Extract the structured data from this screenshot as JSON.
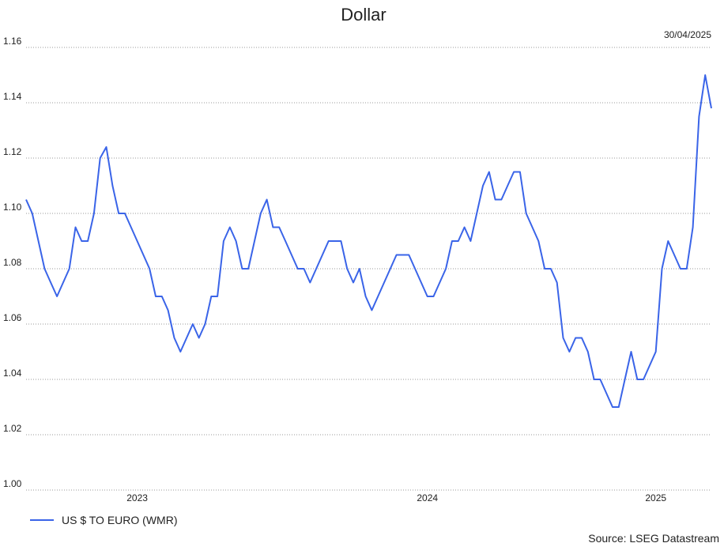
{
  "chart_data": {
    "type": "line",
    "title": "Dollar",
    "date_label": "30/04/2025",
    "source": "Source: LSEG Datastream",
    "categories": [
      null,
      null,
      null,
      null,
      null,
      null,
      null,
      null,
      null,
      null,
      null,
      null,
      null,
      null,
      null,
      null,
      null,
      null,
      "2023",
      null,
      null,
      null,
      null,
      null,
      null,
      null,
      null,
      null,
      null,
      null,
      null,
      null,
      null,
      null,
      null,
      null,
      null,
      null,
      null,
      null,
      null,
      null,
      null,
      null,
      null,
      null,
      null,
      null,
      null,
      null,
      null,
      null,
      null,
      null,
      null,
      null,
      null,
      null,
      null,
      null,
      null,
      null,
      null,
      null,
      null,
      "2024",
      null,
      null,
      null,
      null,
      null,
      null,
      null,
      null,
      null,
      null,
      null,
      null,
      null,
      null,
      null,
      null,
      null,
      null,
      null,
      null,
      null,
      null,
      null,
      null,
      null,
      null,
      null,
      null,
      null,
      null,
      null,
      null,
      null,
      null,
      null,
      null,
      "2025",
      null,
      null,
      null,
      null,
      null,
      null,
      null,
      null,
      null
    ],
    "series": [
      {
        "name": "US $ TO EURO (WMR)",
        "color": "#3a64e8",
        "values": [
          1.105,
          1.1,
          1.09,
          1.08,
          1.075,
          1.07,
          1.075,
          1.08,
          1.095,
          1.09,
          1.09,
          1.1,
          1.12,
          1.124,
          1.11,
          1.1,
          1.1,
          1.095,
          1.09,
          1.085,
          1.08,
          1.07,
          1.07,
          1.065,
          1.055,
          1.05,
          1.055,
          1.06,
          1.055,
          1.06,
          1.07,
          1.07,
          1.09,
          1.095,
          1.09,
          1.08,
          1.08,
          1.09,
          1.1,
          1.105,
          1.095,
          1.095,
          1.09,
          1.085,
          1.08,
          1.08,
          1.075,
          1.08,
          1.085,
          1.09,
          1.09,
          1.09,
          1.08,
          1.075,
          1.08,
          1.07,
          1.065,
          1.07,
          1.075,
          1.08,
          1.085,
          1.085,
          1.085,
          1.08,
          1.075,
          1.07,
          1.07,
          1.075,
          1.08,
          1.09,
          1.09,
          1.095,
          1.09,
          1.1,
          1.11,
          1.115,
          1.105,
          1.105,
          1.11,
          1.115,
          1.115,
          1.1,
          1.095,
          1.09,
          1.08,
          1.08,
          1.075,
          1.055,
          1.05,
          1.055,
          1.055,
          1.05,
          1.04,
          1.04,
          1.035,
          1.03,
          1.03,
          1.04,
          1.05,
          1.04,
          1.04,
          1.045,
          1.05,
          1.08,
          1.09,
          1.085,
          1.08,
          1.08,
          1.095,
          1.135,
          1.15,
          1.138
        ]
      }
    ],
    "ylim": [
      1.0,
      1.16
    ],
    "yticks": [
      {
        "value": 1.0,
        "label": "1.00"
      },
      1.02,
      1.04,
      1.06,
      1.08,
      {
        "value": 1.1,
        "label": "1.10"
      },
      1.12,
      1.14,
      1.16
    ],
    "grid": true,
    "legend": "bottom-left"
  }
}
